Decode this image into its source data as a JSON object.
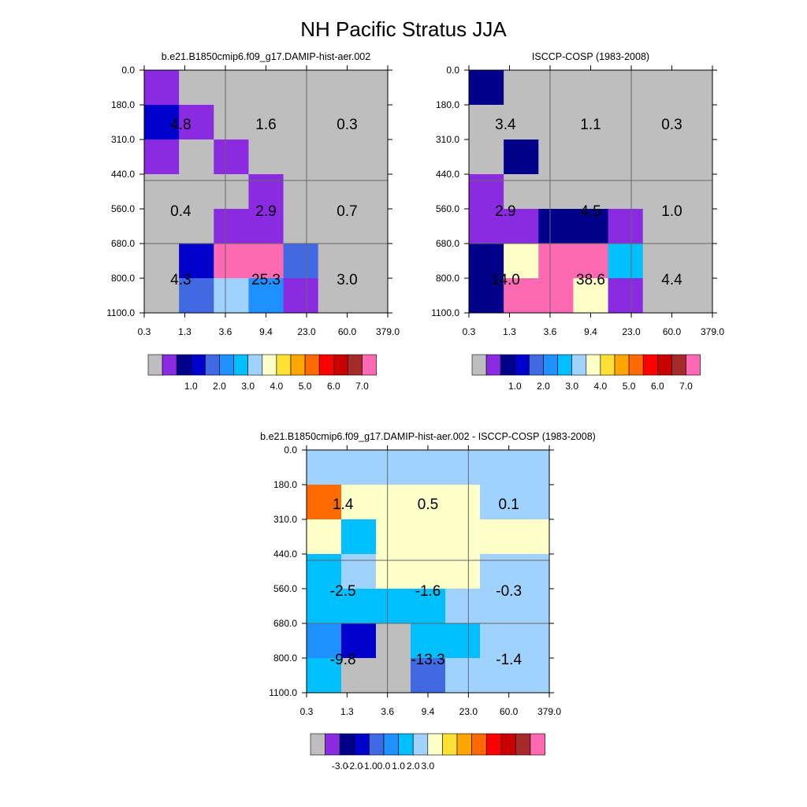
{
  "figure_title": "NH Pacific Stratus JJA",
  "palettes": {
    "abs": [
      "#bebebe",
      "#8a2be2",
      "#00008b",
      "#0000cd",
      "#4169e1",
      "#1e90ff",
      "#00bfff",
      "#a0d2ff",
      "#ffffc8",
      "#ffe135",
      "#ffa500",
      "#ff6a00",
      "#ff0000",
      "#c80000",
      "#a52a2a",
      "#ff69b4"
    ],
    "diff": [
      "#bebebe",
      "#8a2be2",
      "#00008b",
      "#0000cd",
      "#4169e1",
      "#1e90ff",
      "#00bfff",
      "#a0d2ff",
      "#ffffc8",
      "#ffe135",
      "#ffa500",
      "#ff6a00",
      "#ff0000",
      "#c80000",
      "#a52a2a",
      "#ff69b4"
    ]
  },
  "colorbar_labels": {
    "abs": [
      {
        "label": "1.0",
        "after_box": 3
      },
      {
        "label": "2.0",
        "after_box": 5
      },
      {
        "label": "3.0",
        "after_box": 7
      },
      {
        "label": "4.0",
        "after_box": 9
      },
      {
        "label": "5.0",
        "after_box": 11
      },
      {
        "label": "6.0",
        "after_box": 13
      },
      {
        "label": "7.0",
        "after_box": 15
      }
    ],
    "diff": [
      {
        "label": "-3.0",
        "after_box": 2
      },
      {
        "label": "-2.0",
        "after_box": 3
      },
      {
        "label": "-1.0",
        "after_box": 4
      },
      {
        "label": "0.0",
        "after_box": 5
      },
      {
        "label": "1.0",
        "after_box": 6
      },
      {
        "label": "2.0",
        "after_box": 7
      },
      {
        "label": "3.0",
        "after_box": 8
      }
    ]
  },
  "chart_data": [
    {
      "type": "heatmap",
      "title": "b.e21.B1850cmip6.f09_g17.DAMIP-hist-aer.002",
      "palette": "abs",
      "xticks": [
        "0.3",
        "1.3",
        "3.6",
        "9.4",
        "23.0",
        "60.0",
        "379.0"
      ],
      "yticks": [
        "0.0",
        "180.0",
        "310.0",
        "440.0",
        "560.0",
        "680.0",
        "800.0",
        "1100.0"
      ],
      "cells": [
        [
          1,
          0,
          0,
          0,
          0,
          0,
          0
        ],
        [
          3,
          1,
          0,
          0,
          0,
          0,
          0
        ],
        [
          1,
          0,
          1,
          0,
          0,
          0,
          0
        ],
        [
          0,
          0,
          0,
          1,
          0,
          0,
          0
        ],
        [
          0,
          0,
          1,
          1,
          0,
          0,
          0
        ],
        [
          0,
          3,
          15,
          15,
          4,
          0,
          0
        ],
        [
          0,
          4,
          7,
          5,
          1,
          0,
          0
        ]
      ],
      "annotations": [
        {
          "text": "4.8",
          "row": 0,
          "col": 0
        },
        {
          "text": "1.6",
          "row": 0,
          "col": 1
        },
        {
          "text": "0.3",
          "row": 0,
          "col": 2
        },
        {
          "text": "0.4",
          "row": 1,
          "col": 0
        },
        {
          "text": "2.9",
          "row": 1,
          "col": 1
        },
        {
          "text": "0.7",
          "row": 1,
          "col": 2
        },
        {
          "text": "4.3",
          "row": 2,
          "col": 0
        },
        {
          "text": "25.3",
          "row": 2,
          "col": 1
        },
        {
          "text": "3.0",
          "row": 2,
          "col": 2
        }
      ]
    },
    {
      "type": "heatmap",
      "title": "ISCCP-COSP (1983-2008)",
      "palette": "abs",
      "xticks": [
        "0.3",
        "1.3",
        "3.6",
        "9.4",
        "23.0",
        "60.0",
        "379.0"
      ],
      "yticks": [
        "0.0",
        "180.0",
        "310.0",
        "440.0",
        "560.0",
        "680.0",
        "800.0",
        "1100.0"
      ],
      "cells": [
        [
          2,
          0,
          0,
          0,
          0,
          0,
          0
        ],
        [
          0,
          0,
          0,
          0,
          0,
          0,
          0
        ],
        [
          0,
          2,
          0,
          0,
          0,
          0,
          0
        ],
        [
          1,
          0,
          0,
          0,
          0,
          0,
          0
        ],
        [
          1,
          1,
          2,
          2,
          1,
          0,
          0
        ],
        [
          2,
          8,
          15,
          15,
          6,
          0,
          0
        ],
        [
          2,
          15,
          15,
          8,
          1,
          0,
          0
        ]
      ],
      "annotations": [
        {
          "text": "3.4",
          "row": 0,
          "col": 0
        },
        {
          "text": "1.1",
          "row": 0,
          "col": 1
        },
        {
          "text": "0.3",
          "row": 0,
          "col": 2
        },
        {
          "text": "2.9",
          "row": 1,
          "col": 0
        },
        {
          "text": "4.5",
          "row": 1,
          "col": 1
        },
        {
          "text": "1.0",
          "row": 1,
          "col": 2
        },
        {
          "text": "14.0",
          "row": 2,
          "col": 0
        },
        {
          "text": "38.6",
          "row": 2,
          "col": 1
        },
        {
          "text": "4.4",
          "row": 2,
          "col": 2
        }
      ]
    },
    {
      "type": "heatmap",
      "title": "b.e21.B1850cmip6.f09_g17.DAMIP-hist-aer.002 - ISCCP-COSP (1983-2008)",
      "palette": "diff",
      "xticks": [
        "0.3",
        "1.3",
        "3.6",
        "9.4",
        "23.0",
        "60.0",
        "379.0"
      ],
      "yticks": [
        "0.0",
        "180.0",
        "310.0",
        "440.0",
        "560.0",
        "680.0",
        "800.0",
        "1100.0"
      ],
      "cells": [
        [
          7,
          7,
          7,
          7,
          7,
          7,
          7
        ],
        [
          11,
          8,
          8,
          8,
          8,
          7,
          7
        ],
        [
          8,
          6,
          8,
          8,
          8,
          8,
          8
        ],
        [
          6,
          7,
          8,
          8,
          8,
          7,
          7
        ],
        [
          6,
          6,
          6,
          6,
          7,
          7,
          7
        ],
        [
          5,
          3,
          0,
          6,
          6,
          7,
          7
        ],
        [
          6,
          0,
          0,
          4,
          7,
          7,
          7
        ]
      ],
      "annotations": [
        {
          "text": "1.4",
          "row": 0,
          "col": 0
        },
        {
          "text": "0.5",
          "row": 0,
          "col": 1
        },
        {
          "text": "0.1",
          "row": 0,
          "col": 2
        },
        {
          "text": "-2.5",
          "row": 1,
          "col": 0
        },
        {
          "text": "-1.6",
          "row": 1,
          "col": 1
        },
        {
          "text": "-0.3",
          "row": 1,
          "col": 2
        },
        {
          "text": "-9.8",
          "row": 2,
          "col": 0
        },
        {
          "text": "-13.3",
          "row": 2,
          "col": 1
        },
        {
          "text": "-1.4",
          "row": 2,
          "col": 2
        }
      ]
    }
  ]
}
